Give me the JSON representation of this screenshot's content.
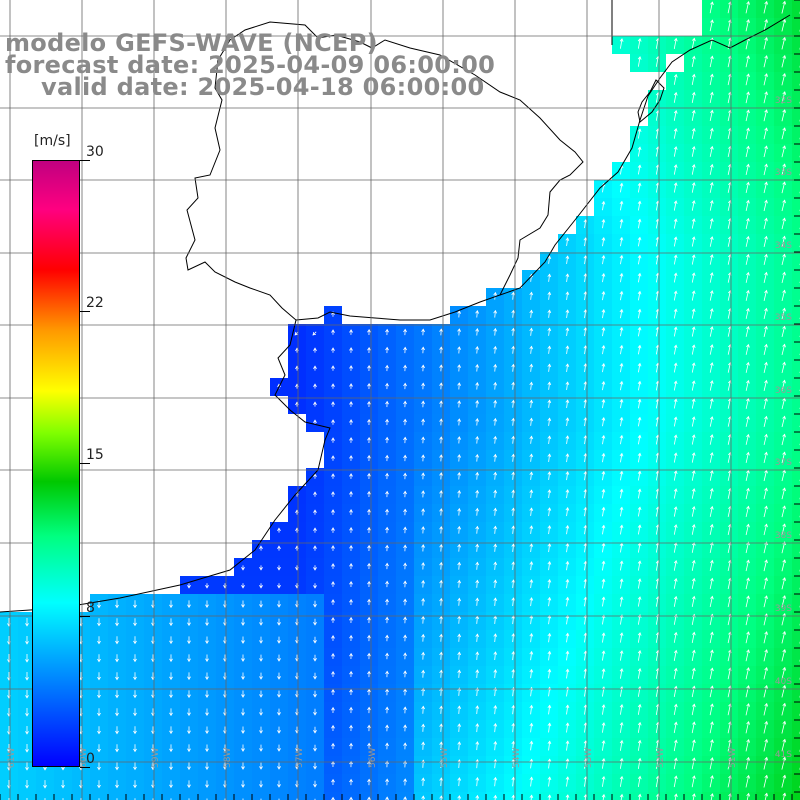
{
  "title": {
    "line1": "modelo GEFS-WAVE (NCEP)",
    "line2": "forecast date: 2025-04-09 06:00:00",
    "line3": "valid date: 2025-04-18 06:00:00"
  },
  "colorbar": {
    "unit": "[m/s]",
    "ticks": [
      "30",
      "22",
      "15",
      "8",
      "0"
    ],
    "range": [
      0,
      30
    ],
    "colors": [
      "#0000ff",
      "#00a8ff",
      "#00ffff",
      "#00ff80",
      "#00c800",
      "#7fff00",
      "#ffff00",
      "#ff9900",
      "#ff0000",
      "#ff0080",
      "#c00080"
    ]
  },
  "grid": {
    "lat_labels": [
      "32S",
      "33S",
      "34S",
      "35S",
      "36S",
      "37S",
      "38S",
      "39S",
      "40S",
      "41S"
    ],
    "lon_labels": [
      "61W",
      "60W",
      "59W",
      "58W",
      "57W",
      "56W",
      "55W",
      "54W",
      "53W",
      "52W",
      "51W"
    ]
  },
  "colors": {
    "land": "#ffffff",
    "coast": "#000000",
    "arrows": "#ffffff",
    "grid_lines": "#555555",
    "title_text": "#8a8a8a"
  }
}
